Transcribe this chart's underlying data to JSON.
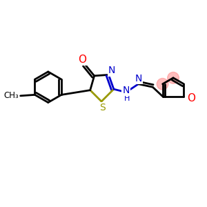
{
  "bg_color": "#ffffff",
  "bond_color": "#000000",
  "n_color": "#0000cc",
  "o_color": "#ff0000",
  "s_color": "#999900",
  "highlight_color": "#ff8888",
  "line_width": 2.0,
  "figsize": [
    3.0,
    3.0
  ],
  "dpi": 100,
  "xlim": [
    0,
    10
  ],
  "ylim": [
    0,
    10
  ]
}
